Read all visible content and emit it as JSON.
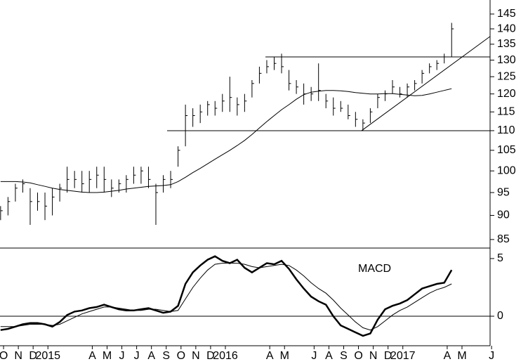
{
  "chart_data": [
    {
      "type": "ohlc",
      "log": true,
      "ylim": [
        83.3,
        149.9
      ],
      "yticks": [
        85,
        90,
        95,
        100,
        105,
        110,
        115,
        120,
        125,
        130,
        135,
        140,
        145
      ],
      "x": [
        0.3,
        0.8,
        1.3,
        1.8,
        2.3,
        2.8,
        3.3,
        3.8,
        4.3,
        4.8,
        5.3,
        5.8,
        6.3,
        6.8,
        7.3,
        7.8,
        8.3,
        8.8,
        9.3,
        9.8,
        10.3,
        10.8,
        11.3,
        11.8,
        12.3,
        12.8,
        13.3,
        13.8,
        14.3,
        14.8,
        15.3,
        15.8,
        16.3,
        16.8,
        17.3,
        17.8,
        18.3,
        18.8,
        19.3,
        19.8,
        20.3,
        20.8,
        21.3,
        21.8,
        22.3,
        22.8,
        23.3,
        23.8,
        24.3,
        24.8,
        25.3,
        25.8,
        26.3,
        26.8,
        27.3,
        27.8,
        28.3,
        28.8,
        29.3,
        29.8,
        30.3,
        30.8
      ],
      "high": [
        92,
        94,
        97,
        98,
        96,
        95,
        95,
        96,
        97,
        101,
        100,
        100,
        100,
        101,
        101,
        98,
        98,
        99,
        101,
        101,
        101,
        97,
        99,
        100,
        106,
        117,
        116,
        117,
        118,
        118,
        120,
        125,
        119,
        120,
        124,
        128,
        130,
        131,
        132,
        127,
        124,
        123,
        122,
        129,
        120,
        119,
        118,
        117,
        115,
        113,
        116,
        120,
        121,
        124,
        122,
        123,
        124,
        127,
        129,
        130,
        132,
        142
      ],
      "low": [
        89,
        90,
        93,
        95,
        88,
        91,
        89,
        90,
        93,
        95,
        96,
        95,
        95,
        96,
        95,
        94,
        95,
        95,
        97,
        97,
        96,
        88,
        95,
        96,
        101,
        106,
        111,
        112,
        114,
        114,
        115,
        115,
        114,
        115,
        119,
        123,
        126,
        127,
        126,
        121,
        120,
        117,
        118,
        118,
        116,
        114,
        115,
        113,
        111,
        110,
        112,
        116,
        118,
        120,
        119,
        119,
        121,
        123,
        126,
        127,
        129,
        131
      ],
      "close": [
        91,
        93,
        96,
        97,
        93,
        93,
        92,
        94,
        96,
        98,
        98,
        97,
        98,
        99,
        98,
        96,
        97,
        98,
        99,
        100,
        98,
        95,
        98,
        98,
        105,
        114,
        114,
        115,
        117,
        116,
        118,
        119,
        117,
        118,
        123,
        126,
        128,
        129,
        128,
        123,
        122,
        120,
        120,
        121,
        118,
        116,
        116,
        114,
        113,
        112,
        115,
        119,
        120,
        122,
        120,
        122,
        123,
        126,
        128,
        129,
        131,
        140
      ],
      "bar_color": "#000000",
      "series": [
        {
          "color": "#000000",
          "values": [
            97.5,
            97.5,
            97.5,
            97.4,
            97.2,
            96.8,
            96.4,
            96,
            95.7,
            95.5,
            95.3,
            95.1,
            95,
            95,
            95.1,
            95.3,
            95.5,
            95.8,
            96,
            96.2,
            96.4,
            96.5,
            96.6,
            96.8,
            97.5,
            98.5,
            99.6,
            100.6,
            101.7,
            102.8,
            103.9,
            105,
            106.2,
            107.5,
            109,
            110.7,
            112.4,
            114,
            115.6,
            117,
            118.5,
            119.8,
            120.5,
            120.8,
            121,
            121,
            120.9,
            120.7,
            120.4,
            120.2,
            120,
            120,
            120.1,
            120.1,
            119.9,
            119.7,
            119.5,
            119.6,
            120,
            120.5,
            121,
            121.5
          ]
        }
      ],
      "lines": [
        {
          "x": [
            11.56,
            33.4
          ],
          "y": [
            110,
            110
          ]
        },
        {
          "x": [
            18.21,
            33.4
          ],
          "y": [
            131,
            131
          ]
        },
        {
          "x": [
            24.71,
            33.4
          ],
          "y": [
            110,
            137.5
          ]
        }
      ]
    },
    {
      "type": "line",
      "annotation": "MACD",
      "ylim": [
        -2.56,
        5.91
      ],
      "yticks": [
        0,
        5
      ],
      "zero_line": true,
      "xlim": [
        0.26,
        33.4
      ],
      "xticks": [
        {
          "value": 0.5,
          "label": "O"
        },
        {
          "value": 1.5,
          "label": "N"
        },
        {
          "value": 2.5,
          "label": "D"
        },
        {
          "value": 3.5,
          "label": "2015"
        },
        {
          "value": 6.5,
          "label": "A"
        },
        {
          "value": 7.5,
          "label": "M"
        },
        {
          "value": 8.5,
          "label": "J"
        },
        {
          "value": 9.5,
          "label": "J"
        },
        {
          "value": 10.5,
          "label": "A"
        },
        {
          "value": 11.5,
          "label": "S"
        },
        {
          "value": 12.5,
          "label": "O"
        },
        {
          "value": 13.5,
          "label": "N"
        },
        {
          "value": 14.5,
          "label": "D"
        },
        {
          "value": 15.5,
          "label": "2016"
        },
        {
          "value": 18.5,
          "label": "A"
        },
        {
          "value": 19.5,
          "label": "M"
        },
        {
          "value": 21.5,
          "label": "J"
        },
        {
          "value": 22.5,
          "label": "A"
        },
        {
          "value": 23.5,
          "label": "S"
        },
        {
          "value": 24.5,
          "label": "O"
        },
        {
          "value": 25.5,
          "label": "N"
        },
        {
          "value": 26.5,
          "label": "D"
        },
        {
          "value": 27.5,
          "label": "2017"
        },
        {
          "value": 30.5,
          "label": "A"
        },
        {
          "value": 31.5,
          "label": "M"
        },
        {
          "value": 33.5,
          "label": "J"
        }
      ],
      "series": [
        {
          "color": "#000000",
          "width": 2.5,
          "values": [
            -1.2,
            -1.1,
            -0.9,
            -0.7,
            -0.6,
            -0.6,
            -0.7,
            -0.9,
            -0.5,
            0.1,
            0.4,
            0.5,
            0.7,
            0.8,
            1.0,
            0.8,
            0.6,
            0.5,
            0.5,
            0.6,
            0.7,
            0.5,
            0.3,
            0.4,
            0.9,
            2.8,
            3.8,
            4.4,
            4.9,
            5.2,
            4.8,
            4.6,
            4.9,
            4.2,
            3.8,
            4.2,
            4.6,
            4.5,
            4.8,
            4.1,
            3.2,
            2.4,
            1.7,
            1.3,
            1.0,
            0.0,
            -0.8,
            -1.1,
            -1.4,
            -1.7,
            -1.5,
            -0.3,
            0.6,
            0.9,
            1.1,
            1.4,
            1.9,
            2.4,
            2.6,
            2.8,
            2.9,
            4.0
          ]
        },
        {
          "color": "#000000",
          "width": 1,
          "values": [
            -0.9,
            -0.9,
            -0.9,
            -0.8,
            -0.7,
            -0.7,
            -0.7,
            -0.8,
            -0.7,
            -0.4,
            -0.1,
            0.2,
            0.4,
            0.6,
            0.8,
            0.8,
            0.7,
            0.6,
            0.5,
            0.5,
            0.6,
            0.6,
            0.5,
            0.4,
            0.5,
            1.5,
            2.5,
            3.3,
            4.0,
            4.5,
            4.6,
            4.6,
            4.6,
            4.5,
            4.3,
            4.2,
            4.3,
            4.4,
            4.5,
            4.4,
            4.0,
            3.5,
            2.9,
            2.4,
            2.0,
            1.4,
            0.7,
            0.1,
            -0.5,
            -1.0,
            -1.2,
            -0.9,
            -0.4,
            0.1,
            0.5,
            0.8,
            1.2,
            1.6,
            2.0,
            2.3,
            2.5,
            2.8
          ]
        }
      ]
    }
  ]
}
